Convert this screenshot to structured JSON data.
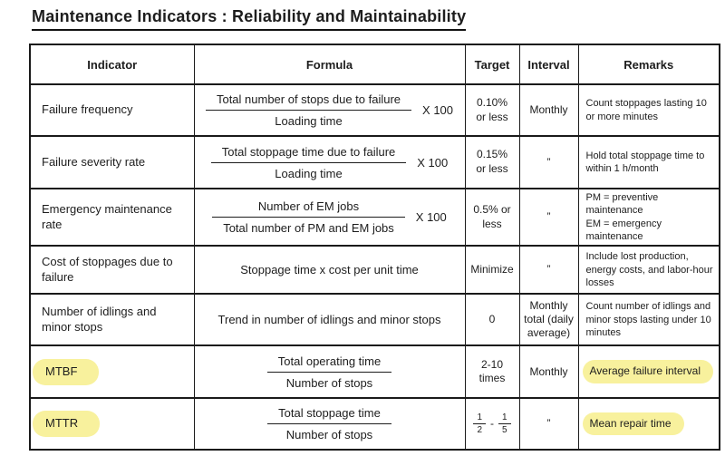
{
  "title": "Maintenance Indicators : Reliability and Maintainability",
  "colors": {
    "background": "#ffffff",
    "text": "#1d1d1d",
    "border": "#1a1a1a",
    "highlight": "#f8f19d"
  },
  "table": {
    "columns": [
      "Indicator",
      "Formula",
      "Target",
      "Interval",
      "Remarks"
    ],
    "rows": [
      {
        "indicator": "Failure frequency",
        "formula": {
          "type": "fraction",
          "numerator": "Total number of stops due to failure",
          "denominator": "Loading time",
          "multiplier": "X 100"
        },
        "target": "0.10%\nor less",
        "interval": "Monthly",
        "remarks": "Count stoppages lasting 10 or more minutes"
      },
      {
        "indicator": "Failure severity rate",
        "formula": {
          "type": "fraction",
          "numerator": "Total stoppage time due to failure",
          "denominator": "Loading time",
          "multiplier": "X 100"
        },
        "target": "0.15%\nor less",
        "interval": "”",
        "remarks": "Hold total stoppage time to within 1 h/month"
      },
      {
        "indicator": "Emergency maintenance rate",
        "formula": {
          "type": "fraction",
          "numerator": "Number of EM jobs",
          "denominator": "Total number of PM and EM jobs",
          "multiplier": "X 100"
        },
        "target": "0.5% or\nless",
        "interval": "”",
        "remarks": "PM = preventive maintenance\nEM = emergency maintenance"
      },
      {
        "indicator": "Cost of stoppages due to failure",
        "formula": {
          "type": "text",
          "text": "Stoppage time x cost per unit time"
        },
        "target": "Minimize",
        "interval": "”",
        "remarks": "Include lost production, energy costs, and labor-hour losses"
      },
      {
        "indicator": "Number of idlings and minor stops",
        "formula": {
          "type": "text",
          "text": "Trend in number of idlings and minor stops"
        },
        "target": "0",
        "interval": "Monthly total (daily average)",
        "remarks": "Count number of idlings and minor stops lasting under 10 minutes"
      },
      {
        "indicator": "MTBF",
        "indicator_highlight": true,
        "formula": {
          "type": "fraction",
          "numerator": "Total operating time",
          "denominator": "Number of stops"
        },
        "target": "2-10 times",
        "interval": "Monthly",
        "remarks": "Average failure interval",
        "remarks_highlight": true
      },
      {
        "indicator": "MTTR",
        "indicator_highlight": true,
        "formula": {
          "type": "fraction",
          "numerator": "Total stoppage time",
          "denominator": "Number of stops"
        },
        "target": {
          "type": "fraction_range",
          "from": {
            "num": "1",
            "den": "2"
          },
          "separator": "-",
          "to": {
            "num": "1",
            "den": "5"
          }
        },
        "interval": "”",
        "remarks": "Mean repair time",
        "remarks_highlight": true
      }
    ]
  }
}
